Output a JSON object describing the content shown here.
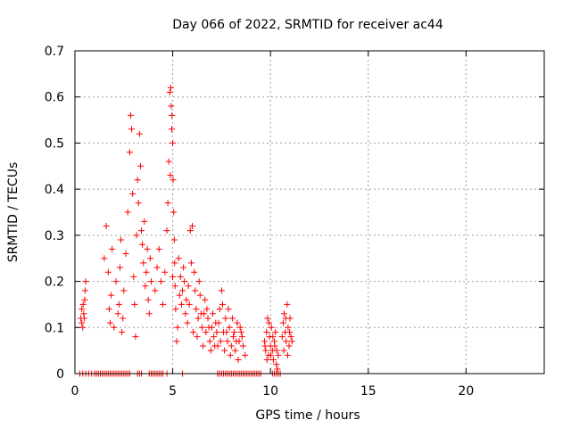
{
  "chart_data": {
    "type": "scatter",
    "title": "Day 066 of 2022, SRMTID for receiver ac44",
    "xlabel": "GPS time / hours",
    "ylabel": "SRMTID / TECUs",
    "xlim": [
      0,
      24
    ],
    "ylim": [
      0,
      0.7
    ],
    "xticks": [
      0,
      5,
      10,
      15,
      20
    ],
    "xtick_labels": [
      "0",
      "5",
      "10",
      "15",
      "20"
    ],
    "yticks": [
      0,
      0.1,
      0.2,
      0.3,
      0.4,
      0.5,
      0.6,
      0.7
    ],
    "ytick_labels": [
      "0",
      "0.1",
      "0.2",
      "0.3",
      "0.4",
      "0.5",
      "0.6",
      "0.7"
    ],
    "grid": true,
    "marker": "+",
    "color": "#ff0000",
    "series": [
      {
        "name": "SRMTID",
        "points": [
          [
            0.3,
            0.12
          ],
          [
            0.35,
            0.14
          ],
          [
            0.4,
            0.1
          ],
          [
            0.45,
            0.13
          ],
          [
            0.5,
            0.16
          ],
          [
            0.55,
            0.2
          ],
          [
            0.35,
            0.11
          ],
          [
            0.42,
            0.15
          ],
          [
            0.48,
            0.12
          ],
          [
            0.52,
            0.18
          ],
          [
            1.5,
            0.25
          ],
          [
            1.6,
            0.32
          ],
          [
            1.7,
            0.22
          ],
          [
            1.75,
            0.14
          ],
          [
            1.8,
            0.11
          ],
          [
            1.85,
            0.17
          ],
          [
            1.9,
            0.27
          ],
          [
            2.0,
            0.1
          ],
          [
            2.1,
            0.2
          ],
          [
            2.2,
            0.13
          ],
          [
            2.25,
            0.15
          ],
          [
            2.3,
            0.23
          ],
          [
            2.35,
            0.29
          ],
          [
            2.4,
            0.09
          ],
          [
            2.45,
            0.12
          ],
          [
            2.5,
            0.18
          ],
          [
            2.6,
            0.26
          ],
          [
            2.7,
            0.35
          ],
          [
            2.8,
            0.48
          ],
          [
            2.85,
            0.56
          ],
          [
            2.9,
            0.53
          ],
          [
            2.95,
            0.39
          ],
          [
            3.0,
            0.21
          ],
          [
            3.05,
            0.15
          ],
          [
            3.1,
            0.08
          ],
          [
            3.15,
            0.3
          ],
          [
            3.2,
            0.42
          ],
          [
            3.25,
            0.37
          ],
          [
            3.3,
            0.52
          ],
          [
            3.35,
            0.45
          ],
          [
            3.4,
            0.31
          ],
          [
            3.45,
            0.28
          ],
          [
            3.5,
            0.24
          ],
          [
            3.55,
            0.33
          ],
          [
            3.6,
            0.19
          ],
          [
            3.65,
            0.22
          ],
          [
            3.7,
            0.27
          ],
          [
            3.75,
            0.16
          ],
          [
            3.8,
            0.13
          ],
          [
            3.85,
            0.25
          ],
          [
            3.9,
            0.2
          ],
          [
            4.1,
            0.18
          ],
          [
            4.2,
            0.23
          ],
          [
            4.3,
            0.27
          ],
          [
            4.4,
            0.2
          ],
          [
            4.5,
            0.15
          ],
          [
            4.6,
            0.22
          ],
          [
            4.7,
            0.31
          ],
          [
            4.75,
            0.37
          ],
          [
            4.8,
            0.46
          ],
          [
            4.85,
            0.61
          ],
          [
            4.9,
            0.62
          ],
          [
            4.92,
            0.58
          ],
          [
            4.95,
            0.53
          ],
          [
            5.0,
            0.5
          ],
          [
            5.02,
            0.42
          ],
          [
            5.05,
            0.35
          ],
          [
            5.08,
            0.29
          ],
          [
            5.1,
            0.24
          ],
          [
            5.12,
            0.19
          ],
          [
            5.15,
            0.14
          ],
          [
            5.2,
            0.07
          ],
          [
            5.25,
            0.1
          ],
          [
            5.0,
            0.21
          ],
          [
            4.88,
            0.43
          ],
          [
            4.96,
            0.56
          ],
          [
            5.3,
            0.25
          ],
          [
            5.4,
            0.21
          ],
          [
            5.5,
            0.18
          ],
          [
            5.6,
            0.2
          ],
          [
            5.7,
            0.16
          ],
          [
            5.8,
            0.19
          ],
          [
            5.9,
            0.31
          ],
          [
            5.95,
            0.24
          ],
          [
            6.0,
            0.32
          ],
          [
            6.1,
            0.22
          ],
          [
            6.2,
            0.14
          ],
          [
            6.3,
            0.12
          ],
          [
            6.4,
            0.17
          ],
          [
            6.5,
            0.1
          ],
          [
            6.6,
            0.13
          ],
          [
            6.7,
            0.09
          ],
          [
            6.8,
            0.12
          ],
          [
            6.9,
            0.07
          ],
          [
            7.0,
            0.1
          ],
          [
            7.1,
            0.08
          ],
          [
            7.2,
            0.11
          ],
          [
            7.3,
            0.06
          ],
          [
            7.4,
            0.14
          ],
          [
            7.5,
            0.18
          ],
          [
            7.6,
            0.09
          ],
          [
            7.7,
            0.12
          ],
          [
            7.8,
            0.07
          ],
          [
            7.9,
            0.1
          ],
          [
            8.0,
            0.06
          ],
          [
            8.1,
            0.08
          ],
          [
            8.2,
            0.05
          ],
          [
            8.3,
            0.11
          ],
          [
            8.4,
            0.07
          ],
          [
            8.5,
            0.09
          ],
          [
            8.6,
            0.06
          ],
          [
            8.7,
            0.04
          ],
          [
            5.35,
            0.17
          ],
          [
            5.45,
            0.15
          ],
          [
            5.55,
            0.23
          ],
          [
            5.65,
            0.13
          ],
          [
            5.75,
            0.11
          ],
          [
            5.85,
            0.15
          ],
          [
            6.05,
            0.09
          ],
          [
            6.15,
            0.18
          ],
          [
            6.25,
            0.08
          ],
          [
            6.35,
            0.2
          ],
          [
            6.45,
            0.13
          ],
          [
            6.55,
            0.06
          ],
          [
            6.65,
            0.16
          ],
          [
            6.75,
            0.14
          ],
          [
            6.85,
            0.1
          ],
          [
            6.95,
            0.05
          ],
          [
            7.05,
            0.13
          ],
          [
            7.15,
            0.06
          ],
          [
            7.25,
            0.09
          ],
          [
            7.35,
            0.11
          ],
          [
            7.45,
            0.07
          ],
          [
            7.55,
            0.15
          ],
          [
            7.65,
            0.05
          ],
          [
            7.75,
            0.09
          ],
          [
            7.85,
            0.14
          ],
          [
            7.95,
            0.04
          ],
          [
            8.05,
            0.12
          ],
          [
            8.15,
            0.09
          ],
          [
            8.25,
            0.07
          ],
          [
            8.35,
            0.03
          ],
          [
            8.45,
            0.1
          ],
          [
            8.55,
            0.08
          ],
          [
            9.7,
            0.07
          ],
          [
            9.75,
            0.05
          ],
          [
            9.8,
            0.09
          ],
          [
            9.85,
            0.12
          ],
          [
            9.9,
            0.04
          ],
          [
            9.95,
            0.08
          ],
          [
            10.0,
            0.06
          ],
          [
            10.05,
            0.1
          ],
          [
            10.1,
            0.05
          ],
          [
            10.15,
            0.03
          ],
          [
            10.2,
            0.07
          ],
          [
            10.25,
            0.09
          ],
          [
            10.3,
            0.02
          ],
          [
            10.35,
            0.01
          ],
          [
            10.4,
            0.04
          ],
          [
            9.72,
            0.06
          ],
          [
            9.82,
            0.03
          ],
          [
            9.92,
            0.11
          ],
          [
            10.02,
            0.04
          ],
          [
            10.12,
            0.08
          ],
          [
            10.22,
            0.06
          ],
          [
            10.32,
            0.05
          ],
          [
            10.6,
            0.08
          ],
          [
            10.65,
            0.11
          ],
          [
            10.7,
            0.13
          ],
          [
            10.75,
            0.09
          ],
          [
            10.8,
            0.07
          ],
          [
            10.85,
            0.15
          ],
          [
            10.9,
            0.1
          ],
          [
            10.95,
            0.06
          ],
          [
            11.0,
            0.12
          ],
          [
            11.05,
            0.08
          ],
          [
            11.1,
            0.07
          ],
          [
            10.68,
            0.05
          ],
          [
            10.78,
            0.12
          ],
          [
            10.88,
            0.04
          ],
          [
            10.98,
            0.09
          ],
          [
            0.25,
            0
          ],
          [
            0.4,
            0
          ],
          [
            0.55,
            0
          ],
          [
            0.7,
            0
          ],
          [
            0.85,
            0
          ],
          [
            1.0,
            0
          ],
          [
            1.1,
            0
          ],
          [
            1.2,
            0
          ],
          [
            1.3,
            0
          ],
          [
            1.4,
            0
          ],
          [
            1.5,
            0
          ],
          [
            1.6,
            0
          ],
          [
            1.7,
            0
          ],
          [
            1.8,
            0
          ],
          [
            1.9,
            0
          ],
          [
            2.0,
            0
          ],
          [
            2.1,
            0
          ],
          [
            2.2,
            0
          ],
          [
            2.3,
            0
          ],
          [
            2.4,
            0
          ],
          [
            2.5,
            0
          ],
          [
            2.6,
            0
          ],
          [
            2.7,
            0
          ],
          [
            2.8,
            0
          ],
          [
            3.2,
            0
          ],
          [
            3.3,
            0
          ],
          [
            3.4,
            0
          ],
          [
            3.8,
            0
          ],
          [
            3.9,
            0
          ],
          [
            4.0,
            0
          ],
          [
            4.1,
            0
          ],
          [
            4.2,
            0
          ],
          [
            4.3,
            0
          ],
          [
            4.4,
            0
          ],
          [
            4.5,
            0
          ],
          [
            4.7,
            0
          ],
          [
            5.5,
            0
          ],
          [
            7.3,
            0
          ],
          [
            7.4,
            0
          ],
          [
            7.5,
            0
          ],
          [
            7.6,
            0
          ],
          [
            7.7,
            0
          ],
          [
            7.8,
            0
          ],
          [
            7.9,
            0
          ],
          [
            8.0,
            0
          ],
          [
            8.1,
            0
          ],
          [
            8.2,
            0
          ],
          [
            8.3,
            0
          ],
          [
            8.4,
            0
          ],
          [
            8.5,
            0
          ],
          [
            8.6,
            0
          ],
          [
            8.7,
            0
          ],
          [
            8.8,
            0
          ],
          [
            8.9,
            0
          ],
          [
            9.0,
            0
          ],
          [
            9.1,
            0
          ],
          [
            9.2,
            0
          ],
          [
            9.3,
            0
          ],
          [
            9.4,
            0
          ],
          [
            9.5,
            0
          ],
          [
            10.1,
            0
          ],
          [
            10.2,
            0
          ],
          [
            10.3,
            0
          ],
          [
            10.4,
            0
          ],
          [
            10.5,
            0
          ]
        ]
      }
    ]
  }
}
